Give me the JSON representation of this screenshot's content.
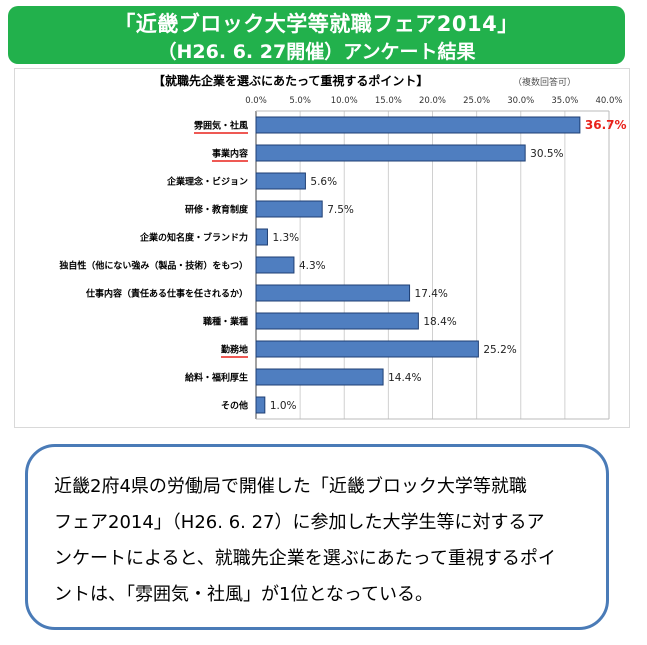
{
  "banner": {
    "line1": "「近畿ブロック大学等就職フェア2014」",
    "line2": "（H26. 6. 27開催）アンケート結果"
  },
  "chart_data": {
    "type": "bar",
    "orientation": "horizontal",
    "title": "【就職先企業を選ぶにあたって重視するポイント】",
    "subtitle": "（複数回答可）",
    "xlim": [
      0,
      40
    ],
    "tick_labels": [
      "0.0%",
      "5.0%",
      "10.0%",
      "15.0%",
      "20.0%",
      "25.0%",
      "30.0%",
      "35.0%",
      "40.0%"
    ],
    "grid": true,
    "categories": [
      "雰囲気・社風",
      "事業内容",
      "企業理念・ビジョン",
      "研修・教育制度",
      "企業の知名度・ブランド力",
      "独自性（他にない強み（製品・技術）をもつ）",
      "仕事内容（責任ある仕事を任されるか）",
      "職種・業種",
      "勤務地",
      "給料・福利厚生",
      "その他"
    ],
    "values": [
      36.7,
      30.5,
      5.6,
      7.5,
      1.3,
      4.3,
      17.4,
      18.4,
      25.2,
      14.4,
      1.0
    ],
    "value_labels": [
      "36.7%",
      "30.5%",
      "5.6%",
      "7.5%",
      "1.3%",
      "4.3%",
      "17.4%",
      "18.4%",
      "25.2%",
      "14.4%",
      "1.0%"
    ],
    "underlined": [
      "雰囲気・社風",
      "事業内容",
      "勤務地"
    ],
    "highlighted_value_index": 0,
    "colors": {
      "bar": "#4f7ec0",
      "bar_border": "#1f3f73",
      "highlight": "#e8221b",
      "underline": "#e8221b",
      "grid": "#d0d0d0"
    }
  },
  "callout": {
    "lines": [
      "近畿2府4県の労働局で開催した「近畿ブロック大学等就職",
      "フェア2014」（H26. 6. 27）に参加した大学生等に対するア",
      "ンケートによると、就職先企業を選ぶにあたって重視するポイ",
      "ントは、「雰囲気・社風」が1位となっている。"
    ]
  }
}
